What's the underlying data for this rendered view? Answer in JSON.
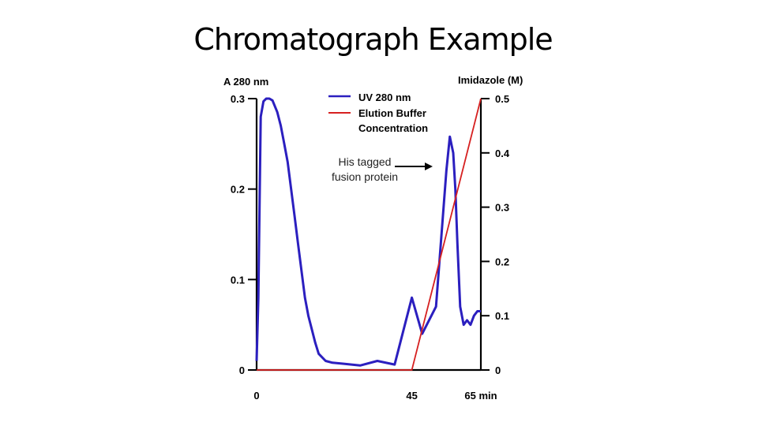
{
  "slide": {
    "title": "Chromatograph Example"
  },
  "chart_data": {
    "type": "line",
    "x_axis": {
      "unit": "min",
      "ticks": [
        "0",
        "45",
        "65 min"
      ],
      "range": [
        0,
        65
      ]
    },
    "y_left": {
      "label": "A 280 nm",
      "range": [
        0,
        0.3
      ],
      "ticks": [
        "0.3",
        "0.2",
        "0.1",
        "0"
      ]
    },
    "y_right": {
      "label": "Imidazole (M)",
      "range": [
        0,
        0.5
      ],
      "ticks": [
        "0.5",
        "0.4",
        "0.3",
        "0.2",
        "0.1",
        "0"
      ]
    },
    "legend": {
      "position": "top-center"
    },
    "series": [
      {
        "name": "UV 280 nm",
        "axis": "left",
        "color": "#2b1fbf",
        "x": [
          0,
          0.5,
          1.2,
          2,
          2.8,
          3.7,
          4.6,
          6,
          7,
          8,
          9,
          10,
          11,
          12,
          13,
          14,
          15,
          16,
          17,
          18,
          20,
          22,
          25,
          30,
          35,
          40,
          45,
          48,
          52,
          55,
          56,
          57,
          57.6,
          58.2,
          59,
          60,
          61,
          62,
          63,
          64,
          65
        ],
        "y": [
          0.01,
          0.08,
          0.28,
          0.297,
          0.3,
          0.3,
          0.298,
          0.285,
          0.27,
          0.25,
          0.23,
          0.2,
          0.17,
          0.14,
          0.11,
          0.08,
          0.06,
          0.045,
          0.03,
          0.018,
          0.01,
          0.008,
          0.007,
          0.005,
          0.01,
          0.006,
          0.08,
          0.04,
          0.07,
          0.22,
          0.258,
          0.24,
          0.2,
          0.14,
          0.07,
          0.05,
          0.055,
          0.05,
          0.06,
          0.065,
          0.065
        ]
      },
      {
        "name": "Elution Buffer\nConcentration",
        "axis": "right",
        "color": "#d62020",
        "x": [
          0,
          45,
          65
        ],
        "y": [
          0,
          0,
          0.5
        ]
      }
    ],
    "annotations": [
      {
        "text": "His tagged fusion protein",
        "arrow": true
      }
    ]
  }
}
